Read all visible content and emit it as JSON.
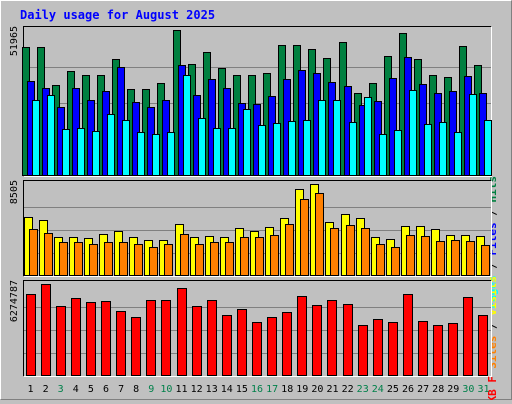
{
  "chart_data": [
    {
      "type": "bar",
      "title": "Daily usage for August 2025",
      "y_max_label": "51965",
      "ylim": [
        0,
        51965
      ],
      "side_labels": [
        "Pages",
        "Files",
        "Hits"
      ],
      "categories": [
        "1",
        "2",
        "3",
        "4",
        "5",
        "6",
        "7",
        "8",
        "9",
        "10",
        "11",
        "12",
        "13",
        "14",
        "15",
        "16",
        "17",
        "18",
        "19",
        "20",
        "21",
        "22",
        "23",
        "24",
        "25",
        "26",
        "27",
        "28",
        "29",
        "30",
        "31"
      ],
      "weekend_days": [
        "3",
        "9",
        "10",
        "16",
        "17",
        "23",
        "24",
        "30",
        "31"
      ],
      "series": [
        {
          "name": "Hits",
          "color": "#008040",
          "values": [
            45900,
            45900,
            32500,
            37400,
            35900,
            35900,
            41600,
            31000,
            30800,
            33100,
            51965,
            39900,
            44100,
            38500,
            36100,
            36100,
            36500,
            46600,
            46600,
            45100,
            42100,
            47800,
            29500,
            33100,
            42700,
            50900,
            41700,
            36100,
            35100,
            46100,
            39600
          ]
        },
        {
          "name": "Files",
          "color": "#0000ff",
          "values": [
            33700,
            31200,
            24400,
            31200,
            27200,
            30200,
            38900,
            26500,
            24400,
            27000,
            39400,
            28700,
            34600,
            31300,
            26100,
            25500,
            28400,
            34600,
            37900,
            36500,
            33300,
            31900,
            25300,
            26700,
            35000,
            42400,
            32800,
            29600,
            30200,
            35600,
            29600
          ]
        },
        {
          "name": "Pages",
          "color": "#00ffff",
          "values": [
            27000,
            28700,
            16800,
            17000,
            15900,
            22000,
            20000,
            15500,
            15000,
            15700,
            36100,
            20600,
            17200,
            17100,
            23800,
            18100,
            19000,
            19500,
            19800,
            27200,
            27200,
            19100,
            28200,
            15100,
            16500,
            30600,
            18400,
            19200,
            15700,
            29100,
            19900
          ]
        }
      ]
    },
    {
      "type": "bar",
      "y_max_label": "8505",
      "ylim": [
        0,
        8505
      ],
      "side_labels": [
        "Sites",
        "Visits"
      ],
      "categories": [
        "1",
        "2",
        "3",
        "4",
        "5",
        "6",
        "7",
        "8",
        "9",
        "10",
        "11",
        "12",
        "13",
        "14",
        "15",
        "16",
        "17",
        "18",
        "19",
        "20",
        "21",
        "22",
        "23",
        "24",
        "25",
        "26",
        "27",
        "28",
        "29",
        "30",
        "31"
      ],
      "series": [
        {
          "name": "Visits",
          "color": "#ffff00",
          "values": [
            5500,
            5200,
            3600,
            3600,
            3500,
            3900,
            4200,
            3600,
            3300,
            3300,
            4800,
            3600,
            3700,
            3600,
            4400,
            4200,
            4500,
            5400,
            8000,
            8505,
            5000,
            5700,
            5400,
            3600,
            3400,
            4600,
            4600,
            4300,
            3800,
            3800,
            3700
          ]
        },
        {
          "name": "Sites",
          "color": "#ff8000",
          "values": [
            4300,
            4000,
            3100,
            3100,
            3000,
            3100,
            3100,
            3000,
            2700,
            3000,
            3900,
            3000,
            3100,
            3100,
            3600,
            3600,
            3800,
            4800,
            7100,
            7700,
            4400,
            4700,
            4400,
            3000,
            2700,
            3800,
            3700,
            3200,
            3300,
            3200,
            2900
          ]
        }
      ]
    },
    {
      "type": "bar",
      "y_max_label": "6274787",
      "ylim": [
        0,
        6274787
      ],
      "side_labels": [
        "KB",
        "F"
      ],
      "categories": [
        "1",
        "2",
        "3",
        "4",
        "5",
        "6",
        "7",
        "8",
        "9",
        "10",
        "11",
        "12",
        "13",
        "14",
        "15",
        "16",
        "17",
        "18",
        "19",
        "20",
        "21",
        "22",
        "23",
        "24",
        "25",
        "26",
        "27",
        "28",
        "29",
        "30",
        "31"
      ],
      "series": [
        {
          "name": "KB F",
          "color": "#ff0000",
          "values": [
            5580000,
            6274787,
            4800000,
            5320000,
            5060000,
            5140000,
            4450000,
            4050000,
            5200000,
            5200000,
            6000000,
            4780000,
            5200000,
            4130000,
            4560000,
            3670000,
            4010000,
            4390000,
            5460000,
            4810000,
            5200000,
            4940000,
            3500000,
            3900000,
            3670000,
            5600000,
            3750000,
            3500000,
            3630000,
            5370000,
            4140000
          ]
        }
      ]
    }
  ]
}
